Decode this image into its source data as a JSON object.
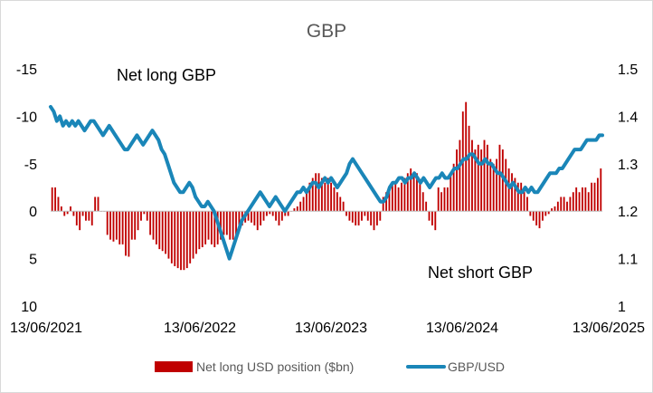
{
  "chart_data": {
    "type": "bar+line",
    "title": "GBP",
    "x_ticks": [
      "13/06/2021",
      "13/06/2022",
      "13/06/2023",
      "13/06/2024",
      "13/06/2025"
    ],
    "left_axis": {
      "ticks": [
        "-15",
        "-10",
        "-5",
        "0",
        "5",
        "10"
      ],
      "range": [
        -15,
        10
      ],
      "inverted": true
    },
    "right_axis": {
      "ticks": [
        "1.5",
        "1.4",
        "1.3",
        "1.2",
        "1.1",
        "1"
      ],
      "range": [
        1.0,
        1.5
      ]
    },
    "annotations": [
      "Net long GBP",
      "Net short GBP"
    ],
    "series": [
      {
        "name": "Net long USD position ($bn)",
        "type": "bar",
        "axis": "left",
        "color": "#c00000",
        "values": [
          -2.5,
          -2.5,
          -1.5,
          -0.5,
          0.5,
          0.3,
          -0.5,
          0.5,
          1.5,
          2.0,
          0.5,
          1.0,
          1.0,
          1.5,
          -1.5,
          -1.5,
          0,
          0,
          2.5,
          3.0,
          3.2,
          3.0,
          3.5,
          3.5,
          4.7,
          4.8,
          3.0,
          3.0,
          2.0,
          1.0,
          0.3,
          1.0,
          2.5,
          3.0,
          3.5,
          4.0,
          4.2,
          4.5,
          5.0,
          5.5,
          5.8,
          6.0,
          6.2,
          6.2,
          6.0,
          5.5,
          5.0,
          4.5,
          4.0,
          3.8,
          3.5,
          3.0,
          3.5,
          3.8,
          3.5,
          3.0,
          2.5,
          2.5,
          3.0,
          3.0,
          2.5,
          2.0,
          1.5,
          1.2,
          1.0,
          1.2,
          1.5,
          2.0,
          1.5,
          1.0,
          0.5,
          0.3,
          0.5,
          1.0,
          1.5,
          1.0,
          0.5,
          0.5,
          0,
          -0.3,
          -0.5,
          -1.0,
          -1.5,
          -2.0,
          -3.0,
          -3.5,
          -4.0,
          -4.0,
          -3.5,
          -3.0,
          -3.5,
          -3.0,
          -2.5,
          -2.0,
          -1.5,
          -1.0,
          0.5,
          1.0,
          1.2,
          1.5,
          1.5,
          1.0,
          0.5,
          1.0,
          1.5,
          2.0,
          1.5,
          1.0,
          -1.5,
          -2.0,
          -2.5,
          -3.0,
          -3.0,
          -2.5,
          -3.0,
          -3.5,
          -4.0,
          -4.5,
          -4.0,
          -4.0,
          -3.0,
          -2.0,
          -1.0,
          1.0,
          1.5,
          2.0,
          -2.5,
          -2.0,
          -2.5,
          -2.5,
          -4.0,
          -5.0,
          -6.5,
          -7.5,
          -10.5,
          -11.5,
          -9.0,
          -7.5,
          -6.5,
          -7.0,
          -6.5,
          -7.5,
          -7.0,
          -5.5,
          -5.0,
          -5.5,
          -7.0,
          -6.5,
          -5.5,
          -4.5,
          -4.0,
          -3.5,
          -3.0,
          -3.0,
          -2.5,
          -1.5,
          0.5,
          1.0,
          1.5,
          1.8,
          1.0,
          0.5,
          0.3,
          -0.3,
          -0.5,
          -1.0,
          -1.5,
          -1.5,
          -1.0,
          -1.5,
          -2.0,
          -2.5,
          -2.0,
          -2.5,
          -2.5,
          -2.0,
          -3.0,
          -3.0,
          -3.5,
          -4.5
        ]
      },
      {
        "name": "GBP/USD",
        "type": "line",
        "axis": "right",
        "color": "#1a86b8",
        "values": [
          1.42,
          1.41,
          1.39,
          1.4,
          1.38,
          1.39,
          1.38,
          1.39,
          1.38,
          1.39,
          1.38,
          1.37,
          1.38,
          1.39,
          1.39,
          1.38,
          1.37,
          1.36,
          1.37,
          1.38,
          1.37,
          1.36,
          1.35,
          1.34,
          1.33,
          1.33,
          1.34,
          1.35,
          1.36,
          1.35,
          1.34,
          1.35,
          1.36,
          1.37,
          1.36,
          1.35,
          1.33,
          1.32,
          1.3,
          1.28,
          1.26,
          1.25,
          1.24,
          1.24,
          1.25,
          1.26,
          1.25,
          1.23,
          1.22,
          1.21,
          1.21,
          1.22,
          1.21,
          1.2,
          1.18,
          1.16,
          1.14,
          1.12,
          1.1,
          1.12,
          1.14,
          1.16,
          1.18,
          1.19,
          1.2,
          1.21,
          1.22,
          1.23,
          1.24,
          1.23,
          1.22,
          1.21,
          1.22,
          1.23,
          1.22,
          1.21,
          1.2,
          1.21,
          1.22,
          1.23,
          1.24,
          1.24,
          1.25,
          1.24,
          1.25,
          1.26,
          1.26,
          1.25,
          1.26,
          1.27,
          1.26,
          1.27,
          1.26,
          1.25,
          1.26,
          1.27,
          1.28,
          1.3,
          1.31,
          1.3,
          1.29,
          1.28,
          1.27,
          1.26,
          1.25,
          1.24,
          1.23,
          1.22,
          1.22,
          1.23,
          1.25,
          1.26,
          1.26,
          1.27,
          1.27,
          1.26,
          1.27,
          1.27,
          1.28,
          1.27,
          1.26,
          1.27,
          1.26,
          1.25,
          1.26,
          1.27,
          1.27,
          1.28,
          1.27,
          1.27,
          1.28,
          1.29,
          1.29,
          1.3,
          1.31,
          1.31,
          1.32,
          1.32,
          1.31,
          1.3,
          1.3,
          1.31,
          1.3,
          1.3,
          1.29,
          1.28,
          1.28,
          1.27,
          1.26,
          1.25,
          1.26,
          1.25,
          1.24,
          1.24,
          1.25,
          1.24,
          1.25,
          1.24,
          1.24,
          1.25,
          1.26,
          1.27,
          1.28,
          1.28,
          1.28,
          1.29,
          1.29,
          1.3,
          1.31,
          1.32,
          1.33,
          1.33,
          1.33,
          1.34,
          1.35,
          1.35,
          1.35,
          1.35,
          1.36,
          1.36
        ]
      }
    ],
    "legend_position": "bottom",
    "grid": false
  }
}
